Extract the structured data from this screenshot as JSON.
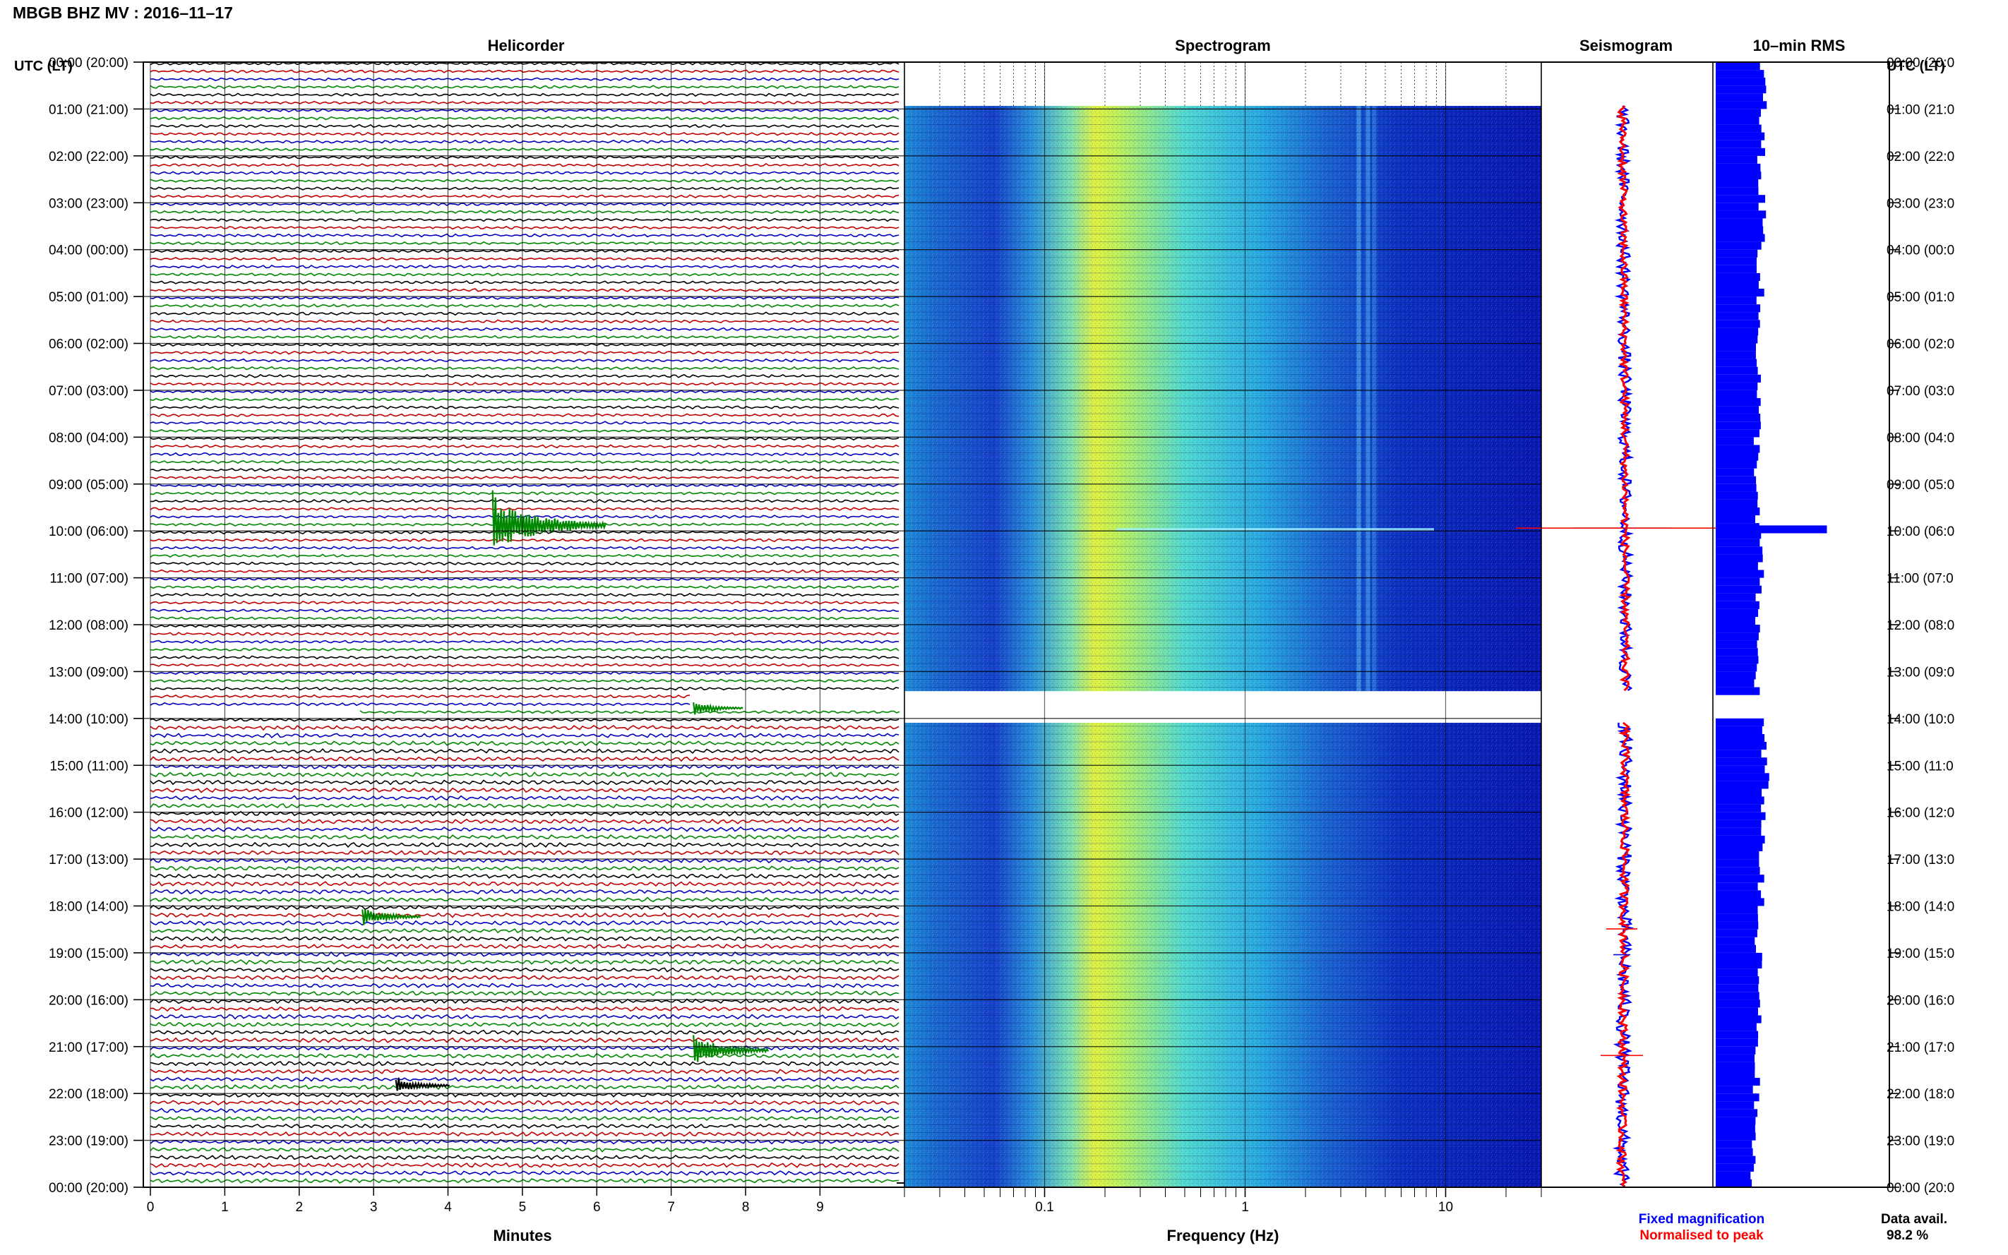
{
  "header": {
    "station_title": "MBGB BHZ MV : 2016–11–17",
    "utc_left": "UTC (LT)",
    "utc_right": "UTC (LT)"
  },
  "panels": {
    "helicorder": "Helicorder",
    "spectrogram": "Spectrogram",
    "seismogram": "Seismogram",
    "rms": "10–min RMS"
  },
  "time_labels": [
    "00:00 (20:00)",
    "01:00 (21:00)",
    "02:00 (22:00)",
    "03:00 (23:00)",
    "04:00 (00:00)",
    "05:00 (01:00)",
    "06:00 (02:00)",
    "07:00 (03:00)",
    "08:00 (04:00)",
    "09:00 (05:00)",
    "10:00 (06:00)",
    "11:00 (07:00)",
    "12:00 (08:00)",
    "13:00 (09:00)",
    "14:00 (10:00)",
    "15:00 (11:00)",
    "16:00 (12:00)",
    "17:00 (13:00)",
    "18:00 (14:00)",
    "19:00 (15:00)",
    "20:00 (16:00)",
    "21:00 (17:00)",
    "22:00 (18:00)",
    "23:00 (19:00)",
    "00:00 (20:00)"
  ],
  "time_labels_right": [
    "00:00 (20:0",
    "01:00 (21:0",
    "02:00 (22:0",
    "03:00 (23:0",
    "04:00 (00:0",
    "05:00 (01:0",
    "06:00 (02:0",
    "07:00 (03:0",
    "08:00 (04:0",
    "09:00 (05:0",
    "10:00 (06:0",
    "11:00 (07:0",
    "12:00 (08:0",
    "13:00 (09:0",
    "14:00 (10:0",
    "15:00 (11:0",
    "16:00 (12:0",
    "17:00 (13:0",
    "18:00 (14:0",
    "19:00 (15:0",
    "20:00 (16:0",
    "21:00 (17:0",
    "22:00 (18:0",
    "23:00 (19:0",
    "00:00 (20:0"
  ],
  "helicorder": {
    "xlabel": "Minutes",
    "xticks": [
      "0",
      "1",
      "2",
      "3",
      "4",
      "5",
      "6",
      "7",
      "8",
      "9"
    ],
    "trace_colors": [
      "#000000",
      "#c00000",
      "#0000c0",
      "#008800"
    ],
    "events": [
      {
        "hour": 10,
        "minute": 4.6,
        "color": "#008800",
        "amp": 1.0
      },
      {
        "hour": 13.9,
        "minute": 7.3,
        "color": "#008800",
        "amp": 0.25
      },
      {
        "hour": 18.35,
        "minute": 2.85,
        "color": "#008800",
        "amp": 0.35
      },
      {
        "hour": 21.2,
        "minute": 7.3,
        "color": "#008800",
        "amp": 0.55
      },
      {
        "hour": 21.95,
        "minute": 3.3,
        "color": "#000000",
        "amp": 0.3
      }
    ]
  },
  "spectrogram": {
    "xlabel": "Frequency (Hz)",
    "xscale": "log",
    "xlim": [
      0.02,
      30
    ],
    "xticks": [
      "0.1",
      "1",
      "10"
    ],
    "data_gap_hours": [
      13.45,
      14.0
    ]
  },
  "seismogram": {
    "fixed_color": "#0000ff",
    "normalised_color": "#ff0000"
  },
  "rms": {
    "bar_color": "#0000ff",
    "interval_minutes": 10,
    "hourly_levels": [
      0.62,
      0.6,
      0.59,
      0.61,
      0.58,
      0.56,
      0.56,
      0.55,
      0.54,
      0.53,
      0.58,
      0.55,
      0.54,
      0.54,
      0.62,
      0.64,
      0.61,
      0.58,
      0.54,
      0.56,
      0.55,
      0.53,
      0.52,
      0.48
    ],
    "spike": {
      "hour": 10.05,
      "level": 1.25
    }
  },
  "legend": {
    "fixed": "Fixed magnification",
    "normalised": "Normalised to peak",
    "fixed_color": "#0000ff",
    "normalised_color": "#ff0000"
  },
  "footer": {
    "data_avail_label": "Data avail.",
    "data_avail_value": "98.2 %"
  }
}
